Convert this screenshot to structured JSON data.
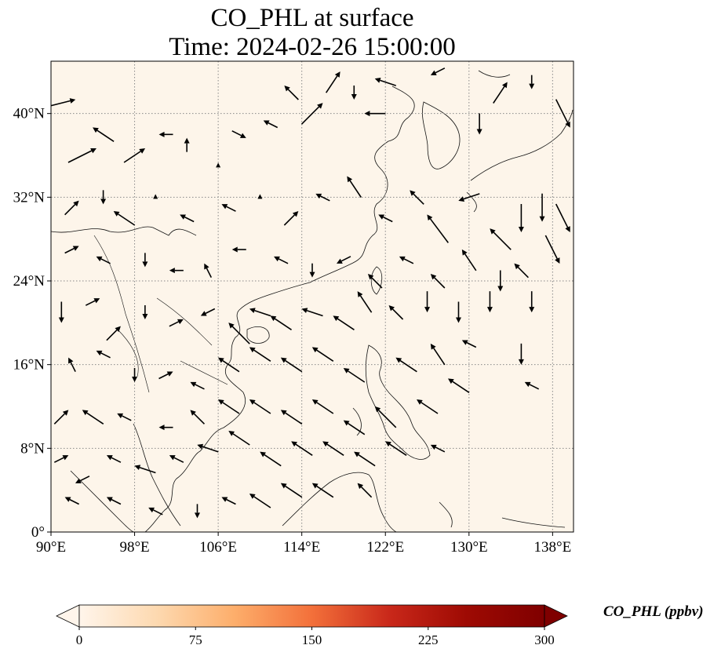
{
  "title": {
    "line1": "CO_PHL at surface",
    "line2": "Time: 2024-02-26 15:00:00"
  },
  "map": {
    "projection": "PlateCarree",
    "lon_range": [
      90,
      140
    ],
    "lat_range": [
      0,
      45
    ],
    "lon_ticks": [
      {
        "value": 90,
        "label": "90°E"
      },
      {
        "value": 98,
        "label": "98°E"
      },
      {
        "value": 106,
        "label": "106°E"
      },
      {
        "value": 114,
        "label": "114°E"
      },
      {
        "value": 122,
        "label": "122°E"
      },
      {
        "value": 130,
        "label": "130°E"
      },
      {
        "value": 138,
        "label": "138°E"
      }
    ],
    "lat_ticks": [
      {
        "value": 0,
        "label": "0°"
      },
      {
        "value": 8,
        "label": "8°N"
      },
      {
        "value": 16,
        "label": "16°N"
      },
      {
        "value": 24,
        "label": "24°N"
      },
      {
        "value": 32,
        "label": "32°N"
      },
      {
        "value": 40,
        "label": "40°N"
      }
    ],
    "gridlines": true,
    "field_colors": {
      "background": "#fdf5ea",
      "outline": "#111111",
      "grid": "#888888",
      "arrow": "#000000"
    }
  },
  "colorbar": {
    "label": "CO_PHL (ppbv)",
    "range": [
      0,
      300
    ],
    "ticks": [
      "0",
      "75",
      "150",
      "225",
      "300"
    ],
    "colormap": [
      "#fff5eb",
      "#fdd9b0",
      "#fdae6b",
      "#f3703a",
      "#c9281a",
      "#9e0a03",
      "#7f0000"
    ],
    "extend": "both"
  },
  "wind_vectors": [
    {
      "lon": 91,
      "lat": 41,
      "u": 4,
      "v": 1
    },
    {
      "lon": 93,
      "lat": 36,
      "u": 4,
      "v": 2
    },
    {
      "lon": 95,
      "lat": 38,
      "u": -3,
      "v": 2
    },
    {
      "lon": 98,
      "lat": 36,
      "u": 3,
      "v": 2
    },
    {
      "lon": 101,
      "lat": 38,
      "u": -2,
      "v": 0
    },
    {
      "lon": 103,
      "lat": 37,
      "u": 0,
      "v": 2
    },
    {
      "lon": 106,
      "lat": 35,
      "u": 0,
      "v": 0
    },
    {
      "lon": 108,
      "lat": 38,
      "u": 2,
      "v": -1
    },
    {
      "lon": 111,
      "lat": 39,
      "u": -2,
      "v": 1
    },
    {
      "lon": 113,
      "lat": 42,
      "u": -2,
      "v": 2
    },
    {
      "lon": 115,
      "lat": 40,
      "u": 3,
      "v": 3
    },
    {
      "lon": 117,
      "lat": 43,
      "u": 2,
      "v": 3
    },
    {
      "lon": 119,
      "lat": 42,
      "u": 0,
      "v": -2
    },
    {
      "lon": 121,
      "lat": 40,
      "u": -3,
      "v": 0
    },
    {
      "lon": 122,
      "lat": 43,
      "u": -3,
      "v": 1
    },
    {
      "lon": 127,
      "lat": 44,
      "u": -2,
      "v": -1
    },
    {
      "lon": 131,
      "lat": 39,
      "u": 0,
      "v": -3
    },
    {
      "lon": 133,
      "lat": 42,
      "u": 2,
      "v": 3
    },
    {
      "lon": 136,
      "lat": 43,
      "u": 0,
      "v": -2
    },
    {
      "lon": 139,
      "lat": 40,
      "u": 2,
      "v": -4
    },
    {
      "lon": 92,
      "lat": 31,
      "u": 2,
      "v": 2
    },
    {
      "lon": 95,
      "lat": 32,
      "u": 0,
      "v": -2
    },
    {
      "lon": 97,
      "lat": 30,
      "u": -3,
      "v": 2
    },
    {
      "lon": 100,
      "lat": 32,
      "u": 0,
      "v": 0
    },
    {
      "lon": 103,
      "lat": 30,
      "u": -2,
      "v": 1
    },
    {
      "lon": 107,
      "lat": 31,
      "u": -2,
      "v": 1
    },
    {
      "lon": 110,
      "lat": 32,
      "u": 0,
      "v": 0
    },
    {
      "lon": 113,
      "lat": 30,
      "u": 2,
      "v": 2
    },
    {
      "lon": 116,
      "lat": 32,
      "u": -2,
      "v": 1
    },
    {
      "lon": 119,
      "lat": 33,
      "u": -2,
      "v": 3
    },
    {
      "lon": 122,
      "lat": 30,
      "u": -2,
      "v": 1
    },
    {
      "lon": 125,
      "lat": 32,
      "u": -2,
      "v": 2
    },
    {
      "lon": 127,
      "lat": 29,
      "u": -3,
      "v": 4
    },
    {
      "lon": 130,
      "lat": 32,
      "u": -3,
      "v": -1
    },
    {
      "lon": 133,
      "lat": 28,
      "u": -3,
      "v": 3
    },
    {
      "lon": 135,
      "lat": 30,
      "u": 0,
      "v": -4
    },
    {
      "lon": 137,
      "lat": 31,
      "u": 0,
      "v": -4
    },
    {
      "lon": 139,
      "lat": 30,
      "u": 2,
      "v": -4
    },
    {
      "lon": 92,
      "lat": 27,
      "u": 2,
      "v": 1
    },
    {
      "lon": 95,
      "lat": 26,
      "u": -2,
      "v": 1
    },
    {
      "lon": 99,
      "lat": 26,
      "u": 0,
      "v": -2
    },
    {
      "lon": 102,
      "lat": 25,
      "u": -2,
      "v": 0
    },
    {
      "lon": 105,
      "lat": 25,
      "u": -1,
      "v": 2
    },
    {
      "lon": 108,
      "lat": 27,
      "u": -2,
      "v": 0
    },
    {
      "lon": 112,
      "lat": 26,
      "u": -2,
      "v": 1
    },
    {
      "lon": 115,
      "lat": 25,
      "u": 0,
      "v": -2
    },
    {
      "lon": 118,
      "lat": 26,
      "u": -2,
      "v": -1
    },
    {
      "lon": 121,
      "lat": 24,
      "u": -2,
      "v": 2
    },
    {
      "lon": 124,
      "lat": 26,
      "u": -2,
      "v": 1
    },
    {
      "lon": 127,
      "lat": 24,
      "u": -2,
      "v": 2
    },
    {
      "lon": 130,
      "lat": 26,
      "u": -2,
      "v": 3
    },
    {
      "lon": 133,
      "lat": 24,
      "u": 0,
      "v": -3
    },
    {
      "lon": 135,
      "lat": 25,
      "u": -2,
      "v": 2
    },
    {
      "lon": 138,
      "lat": 27,
      "u": 2,
      "v": -4
    },
    {
      "lon": 91,
      "lat": 21,
      "u": 0,
      "v": -3
    },
    {
      "lon": 94,
      "lat": 22,
      "u": 2,
      "v": 1
    },
    {
      "lon": 96,
      "lat": 19,
      "u": 2,
      "v": 2
    },
    {
      "lon": 99,
      "lat": 21,
      "u": 0,
      "v": -2
    },
    {
      "lon": 102,
      "lat": 20,
      "u": 2,
      "v": 1
    },
    {
      "lon": 105,
      "lat": 21,
      "u": -2,
      "v": -1
    },
    {
      "lon": 108,
      "lat": 19,
      "u": -3,
      "v": 3
    },
    {
      "lon": 110,
      "lat": 21,
      "u": -3,
      "v": 1
    },
    {
      "lon": 112,
      "lat": 20,
      "u": -3,
      "v": 2
    },
    {
      "lon": 115,
      "lat": 21,
      "u": -3,
      "v": 1
    },
    {
      "lon": 118,
      "lat": 20,
      "u": -3,
      "v": 2
    },
    {
      "lon": 120,
      "lat": 22,
      "u": -2,
      "v": 3
    },
    {
      "lon": 123,
      "lat": 21,
      "u": -2,
      "v": 2
    },
    {
      "lon": 126,
      "lat": 22,
      "u": 0,
      "v": -3
    },
    {
      "lon": 129,
      "lat": 21,
      "u": 0,
      "v": -3
    },
    {
      "lon": 132,
      "lat": 22,
      "u": 0,
      "v": -3
    },
    {
      "lon": 136,
      "lat": 22,
      "u": 0,
      "v": -3
    },
    {
      "lon": 92,
      "lat": 16,
      "u": -1,
      "v": 2
    },
    {
      "lon": 95,
      "lat": 17,
      "u": -2,
      "v": 1
    },
    {
      "lon": 98,
      "lat": 15,
      "u": 0,
      "v": -2
    },
    {
      "lon": 101,
      "lat": 15,
      "u": 2,
      "v": 1
    },
    {
      "lon": 104,
      "lat": 14,
      "u": -2,
      "v": 1
    },
    {
      "lon": 107,
      "lat": 16,
      "u": -3,
      "v": 2
    },
    {
      "lon": 110,
      "lat": 17,
      "u": -3,
      "v": 2
    },
    {
      "lon": 113,
      "lat": 16,
      "u": -3,
      "v": 2
    },
    {
      "lon": 116,
      "lat": 17,
      "u": -3,
      "v": 2
    },
    {
      "lon": 119,
      "lat": 15,
      "u": -3,
      "v": 2
    },
    {
      "lon": 124,
      "lat": 16,
      "u": -3,
      "v": 2
    },
    {
      "lon": 127,
      "lat": 17,
      "u": -2,
      "v": 3
    },
    {
      "lon": 130,
      "lat": 18,
      "u": -2,
      "v": 1
    },
    {
      "lon": 135,
      "lat": 17,
      "u": 0,
      "v": -3
    },
    {
      "lon": 91,
      "lat": 11,
      "u": 2,
      "v": 2
    },
    {
      "lon": 94,
      "lat": 11,
      "u": -3,
      "v": 2
    },
    {
      "lon": 97,
      "lat": 11,
      "u": -2,
      "v": 1
    },
    {
      "lon": 101,
      "lat": 10,
      "u": -2,
      "v": 0
    },
    {
      "lon": 104,
      "lat": 11,
      "u": -2,
      "v": 2
    },
    {
      "lon": 107,
      "lat": 12,
      "u": -3,
      "v": 2
    },
    {
      "lon": 110,
      "lat": 12,
      "u": -3,
      "v": 2
    },
    {
      "lon": 113,
      "lat": 11,
      "u": -3,
      "v": 2
    },
    {
      "lon": 116,
      "lat": 12,
      "u": -3,
      "v": 2
    },
    {
      "lon": 119,
      "lat": 10,
      "u": -3,
      "v": 2
    },
    {
      "lon": 122,
      "lat": 11,
      "u": -3,
      "v": 3
    },
    {
      "lon": 126,
      "lat": 12,
      "u": -3,
      "v": 2
    },
    {
      "lon": 129,
      "lat": 14,
      "u": -3,
      "v": 2
    },
    {
      "lon": 136,
      "lat": 14,
      "u": -2,
      "v": 1
    },
    {
      "lon": 91,
      "lat": 7,
      "u": 2,
      "v": 1
    },
    {
      "lon": 93,
      "lat": 5,
      "u": -2,
      "v": -1
    },
    {
      "lon": 96,
      "lat": 7,
      "u": -2,
      "v": 1
    },
    {
      "lon": 99,
      "lat": 6,
      "u": -3,
      "v": 1
    },
    {
      "lon": 102,
      "lat": 7,
      "u": -2,
      "v": 1
    },
    {
      "lon": 105,
      "lat": 8,
      "u": -3,
      "v": 1
    },
    {
      "lon": 108,
      "lat": 9,
      "u": -3,
      "v": 2
    },
    {
      "lon": 111,
      "lat": 7,
      "u": -3,
      "v": 2
    },
    {
      "lon": 114,
      "lat": 8,
      "u": -3,
      "v": 2
    },
    {
      "lon": 117,
      "lat": 8,
      "u": -3,
      "v": 2
    },
    {
      "lon": 120,
      "lat": 7,
      "u": -3,
      "v": 2
    },
    {
      "lon": 123,
      "lat": 8,
      "u": -3,
      "v": 2
    },
    {
      "lon": 127,
      "lat": 8,
      "u": -2,
      "v": 1
    },
    {
      "lon": 92,
      "lat": 3,
      "u": -2,
      "v": 1
    },
    {
      "lon": 96,
      "lat": 3,
      "u": -2,
      "v": 1
    },
    {
      "lon": 100,
      "lat": 2,
      "u": -2,
      "v": 1
    },
    {
      "lon": 104,
      "lat": 2,
      "u": 0,
      "v": -2
    },
    {
      "lon": 107,
      "lat": 3,
      "u": -2,
      "v": 1
    },
    {
      "lon": 110,
      "lat": 3,
      "u": -3,
      "v": 2
    },
    {
      "lon": 113,
      "lat": 4,
      "u": -3,
      "v": 2
    },
    {
      "lon": 116,
      "lat": 4,
      "u": -3,
      "v": 2
    },
    {
      "lon": 120,
      "lat": 4,
      "u": -2,
      "v": 2
    }
  ]
}
